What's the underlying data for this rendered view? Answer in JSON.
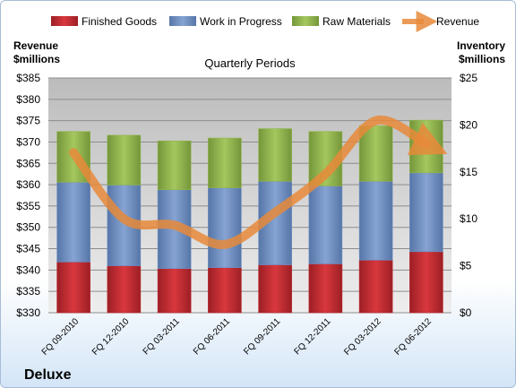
{
  "chart_data": {
    "type": "bar",
    "title": "Quarterly Periods",
    "company": "Deluxe",
    "left_axis": {
      "label_line1": "Revenue",
      "label_line2": "$millions",
      "min": 330,
      "max": 385,
      "step": 5
    },
    "right_axis": {
      "label_line1": "Inventory",
      "label_line2": "$millions",
      "min": 0,
      "max": 25,
      "step": 5
    },
    "categories": [
      "FQ 09-2010",
      "FQ 12-2010",
      "FQ 03-2011",
      "FQ 06-2011",
      "FQ 09-2011",
      "FQ 12-2011",
      "FQ 03-2012",
      "FQ 06-2012"
    ],
    "stacked_series": [
      {
        "name": "Finished Goods",
        "color": "#c0272d",
        "values": [
          5.4,
          5.0,
          4.7,
          4.8,
          5.1,
          5.2,
          5.6,
          6.5
        ]
      },
      {
        "name": "Work in Progress",
        "color": "#6e8fc4",
        "values": [
          8.5,
          8.6,
          8.4,
          8.5,
          8.9,
          8.3,
          8.4,
          8.4
        ]
      },
      {
        "name": "Raw Materials",
        "color": "#91b54a",
        "values": [
          5.4,
          5.3,
          5.2,
          5.3,
          5.6,
          5.8,
          5.9,
          5.6
        ]
      }
    ],
    "line_series": {
      "name": "Revenue",
      "color": "#e8893a",
      "values": [
        367.5,
        352.0,
        350.5,
        346.0,
        353.5,
        362.5,
        375.0,
        369.5
      ]
    },
    "legend_position": "top",
    "grid": true
  }
}
